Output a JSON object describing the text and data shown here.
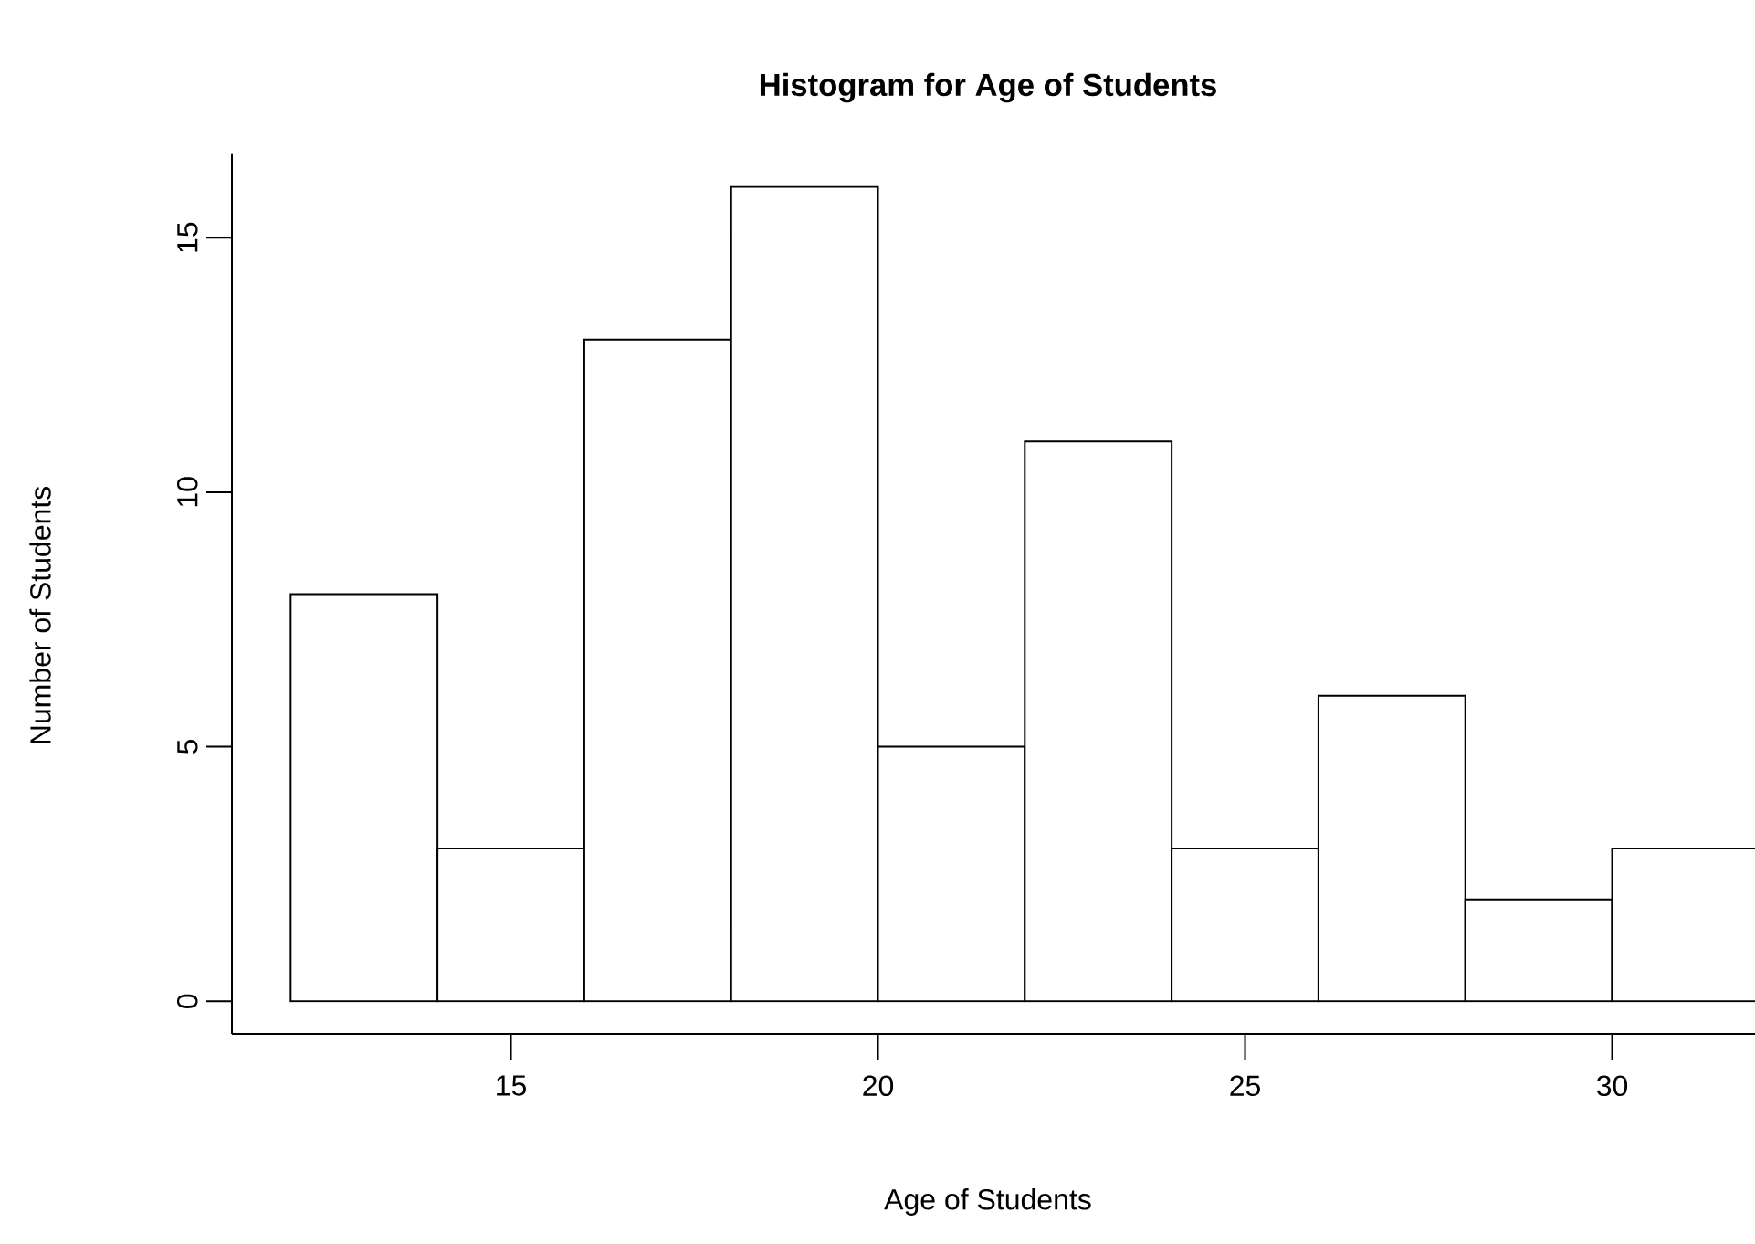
{
  "chart_data": {
    "type": "histogram",
    "title": "Histogram for Age of Students",
    "xlabel": "Age of Students",
    "ylabel": "Number of Students",
    "bins": [
      12,
      14,
      16,
      18,
      20,
      22,
      24,
      26,
      28,
      30,
      32
    ],
    "values": [
      8,
      3,
      13,
      16,
      5,
      11,
      3,
      6,
      2,
      3
    ],
    "color": "#ffffff",
    "xlim": [
      11.2,
      32
    ],
    "ylim": [
      -0.64,
      16.64
    ],
    "xticks": [
      15,
      20,
      25,
      30
    ],
    "yticks": [
      0,
      5,
      10,
      15
    ],
    "grid": false
  }
}
